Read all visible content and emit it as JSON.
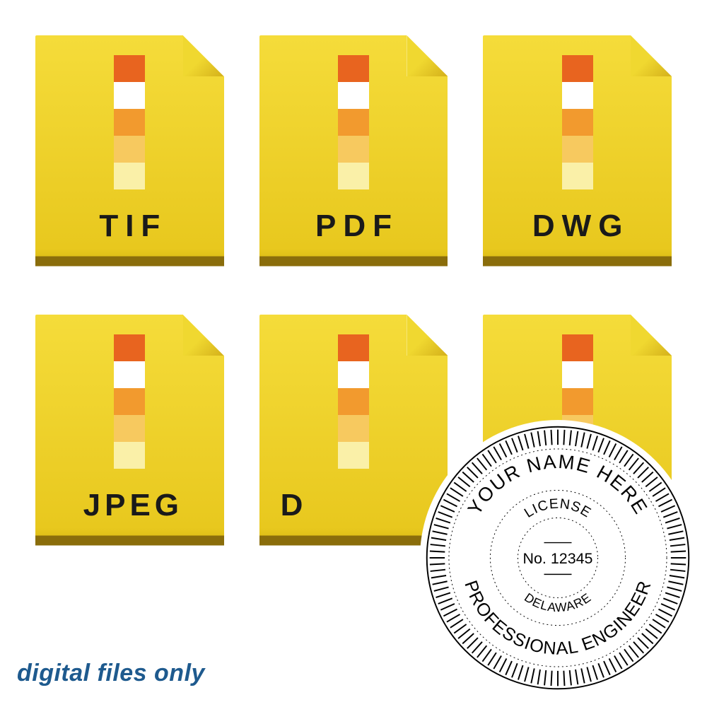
{
  "files": [
    {
      "ext": "TIF"
    },
    {
      "ext": "PDF"
    },
    {
      "ext": "DWG"
    },
    {
      "ext": "JPEG"
    },
    {
      "ext": "D"
    },
    {
      "ext": ""
    }
  ],
  "stripe_colors": [
    "#e8641f",
    "#ffffff",
    "#f29a2e",
    "#f7c95f",
    "#faf0a8"
  ],
  "caption": "digital files only",
  "seal": {
    "top_arc": "YOUR NAME HERE",
    "bottom_arc": "PROFESSIONAL ENGINEER",
    "inner_top": "LICENSE",
    "inner_bottom": "DELAWARE",
    "center": "No. 12345",
    "outline_color": "#000000",
    "text_color": "#000000"
  }
}
